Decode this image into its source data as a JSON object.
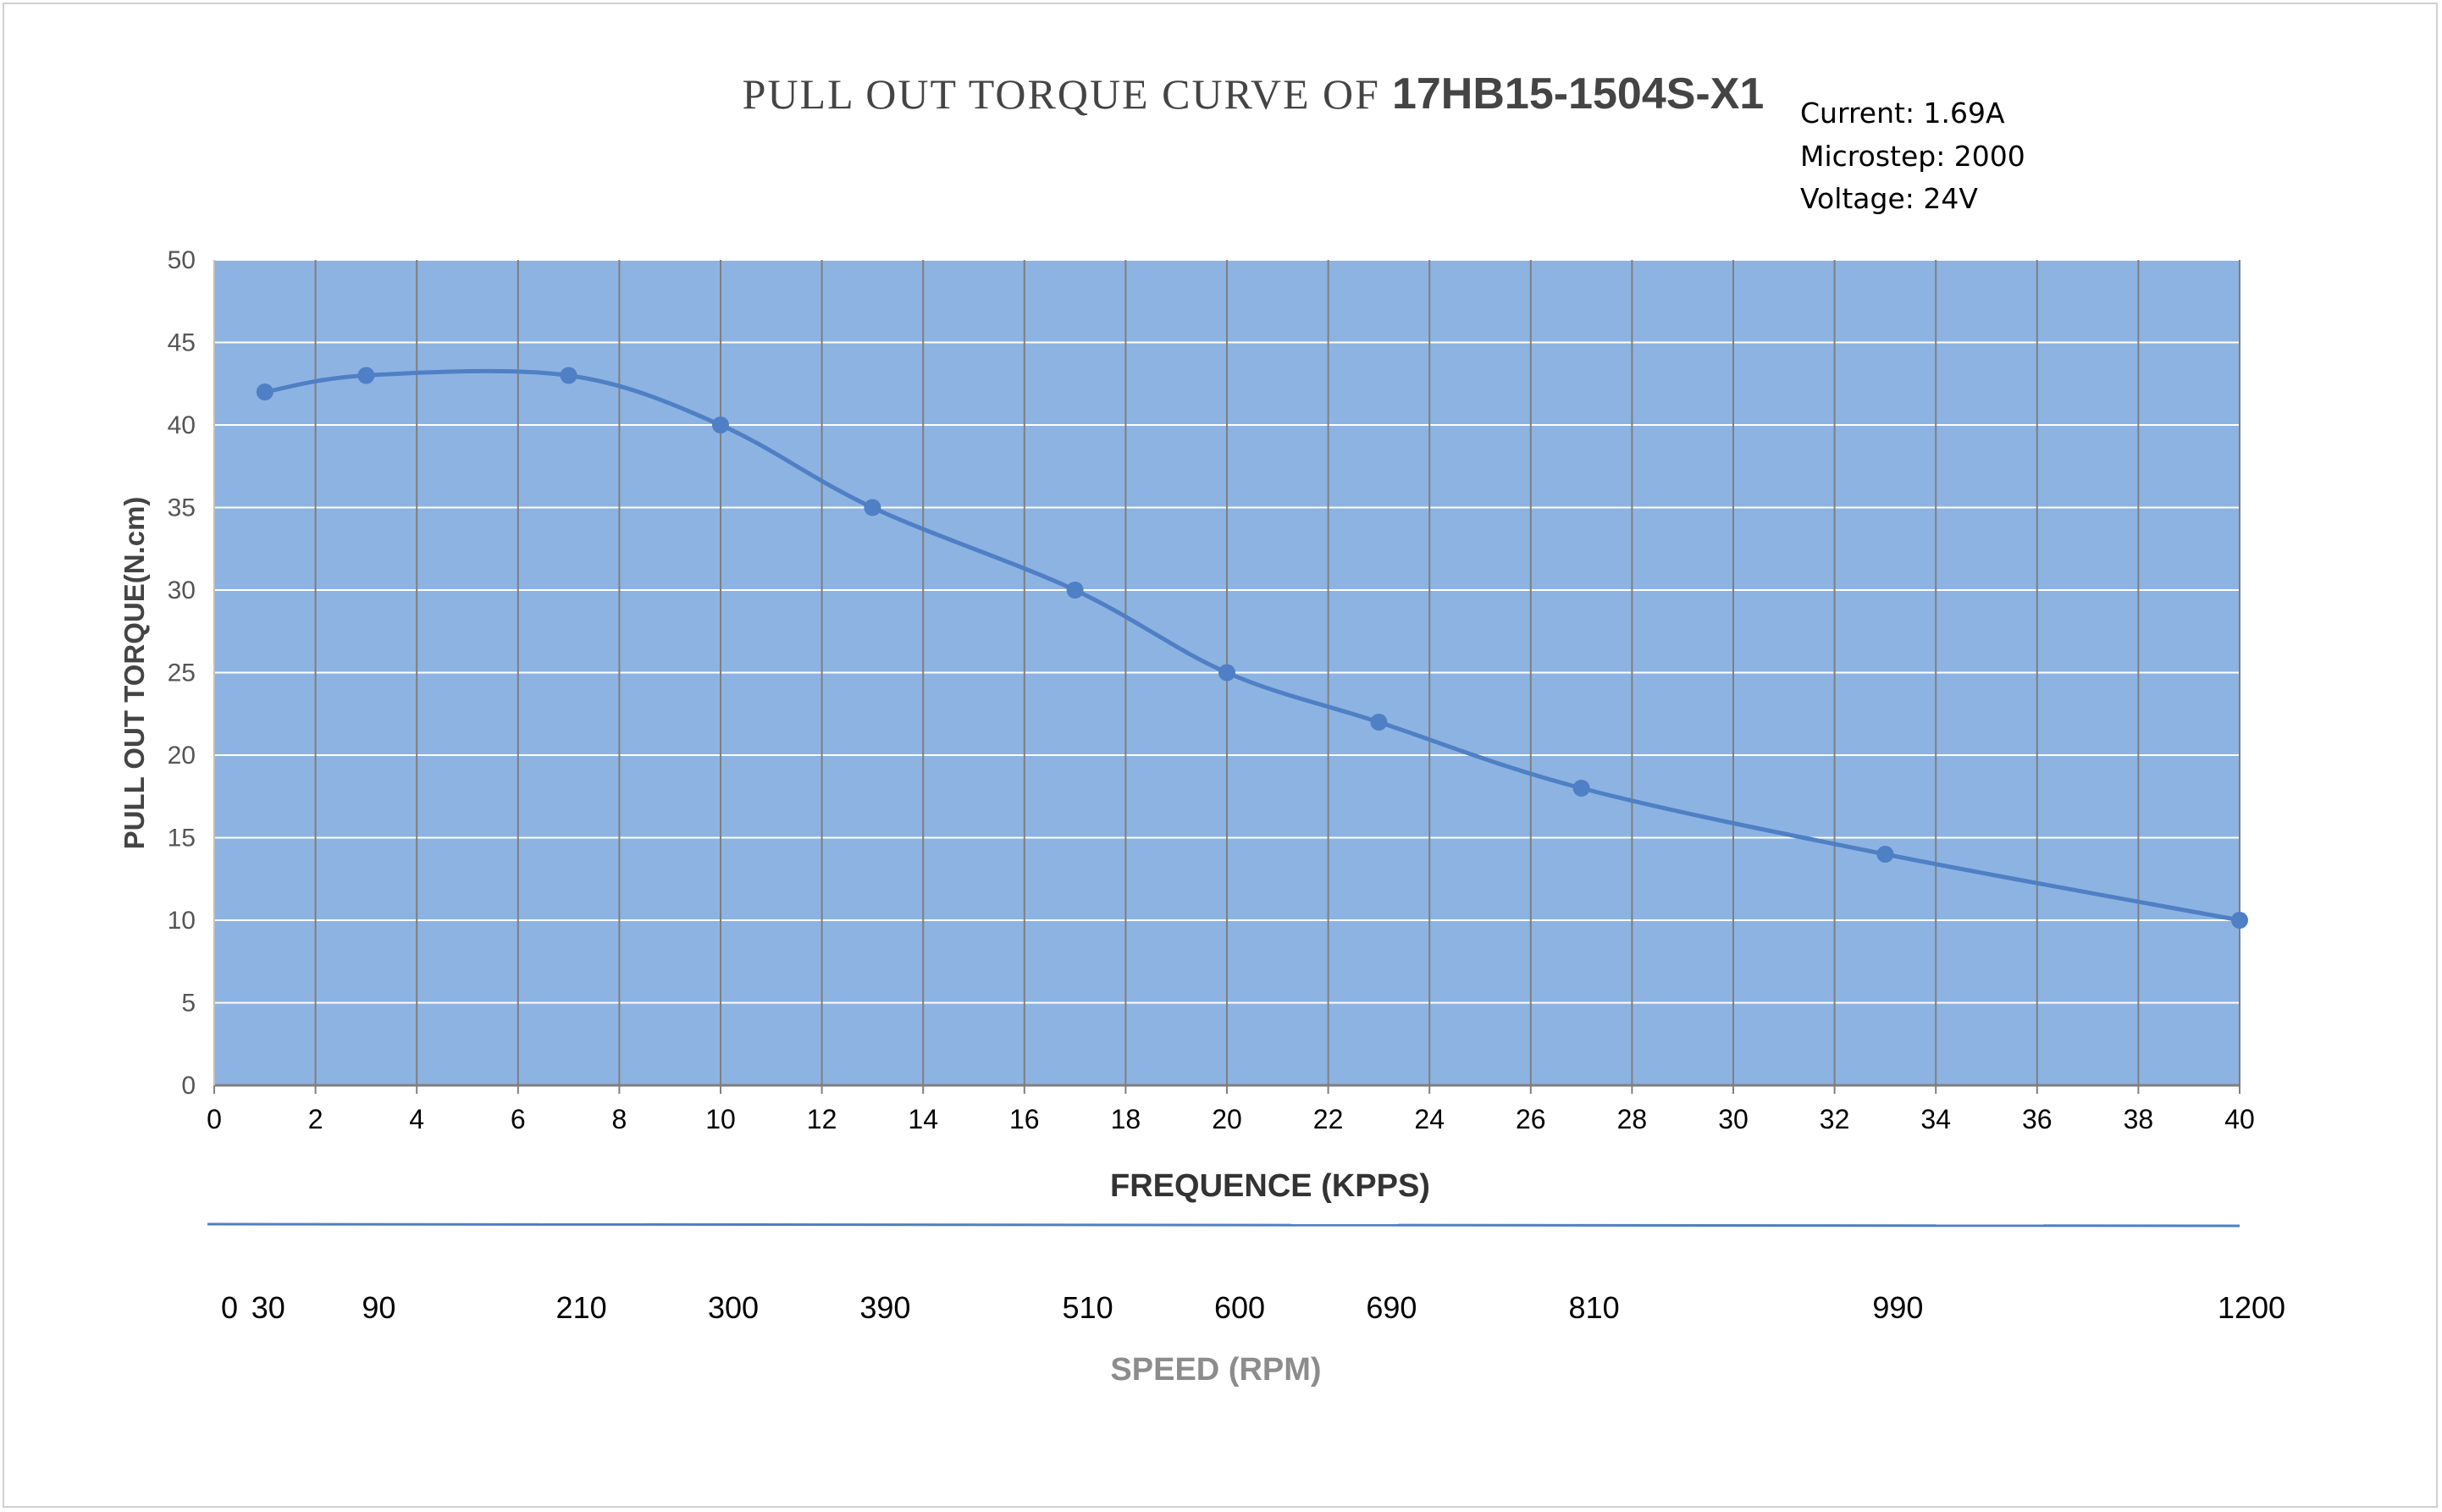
{
  "chart_data": {
    "type": "line",
    "title": "PULL OUT TORQUE CURVE OF",
    "title_model": "17HB15-1504S-X1",
    "annotations": [
      "Current: 1.69A",
      "Microstep: 2000",
      "Voltage: 24V"
    ],
    "xlabel": "FREQUENCE (KPPS)",
    "ylabel": "PULL OUT TORQUE(N.cm)",
    "xlim": [
      0,
      40
    ],
    "ylim": [
      0,
      50
    ],
    "xticks": [
      0,
      2,
      4,
      6,
      8,
      10,
      12,
      14,
      16,
      18,
      20,
      22,
      24,
      26,
      28,
      30,
      32,
      34,
      36,
      38,
      40
    ],
    "yticks": [
      0,
      5,
      10,
      15,
      20,
      25,
      30,
      35,
      40,
      45,
      50
    ],
    "grid": true,
    "legend": "none",
    "series": [
      {
        "x": [
          1,
          3,
          7,
          10,
          13,
          17,
          20,
          23,
          27,
          33,
          40
        ],
        "y": [
          42,
          43,
          43,
          40,
          35,
          30,
          25,
          22,
          18,
          14,
          10
        ]
      }
    ],
    "secondary_axis": {
      "label": "SPEED (RPM)",
      "ticks": [
        {
          "label": "0",
          "freq": 0
        },
        {
          "label": "30",
          "freq": 1
        },
        {
          "label": "90",
          "freq": 3
        },
        {
          "label": "210",
          "freq": 7
        },
        {
          "label": "300",
          "freq": 10
        },
        {
          "label": "390",
          "freq": 13
        },
        {
          "label": "510",
          "freq": 17
        },
        {
          "label": "600",
          "freq": 20
        },
        {
          "label": "690",
          "freq": 23
        },
        {
          "label": "810",
          "freq": 27
        },
        {
          "label": "990",
          "freq": 33
        },
        {
          "label": "1200",
          "freq": 40
        }
      ]
    },
    "colors": {
      "plot_bg": "#8db3e2",
      "series": "#4f7fc4",
      "grid_h": "#ffffff",
      "grid_v": "#7f7f7f",
      "speed_axis": "#4f7fc4"
    }
  }
}
